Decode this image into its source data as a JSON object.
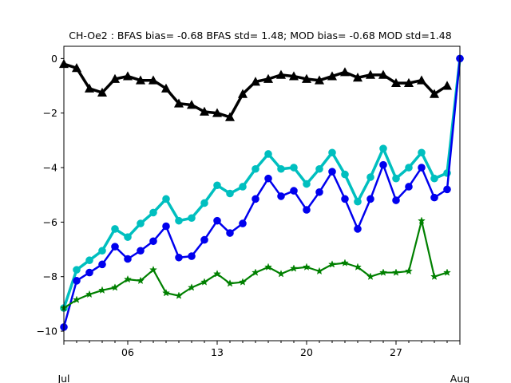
{
  "chart_data": {
    "type": "line",
    "title": "CH-Oe2   : BFAS bias= -0.68 BFAS std= 1.48; MOD bias= -0.68 MOD std=1.48",
    "xlabel": "",
    "ylabel": "",
    "xlim": [
      1,
      32
    ],
    "ylim": [
      -10.35,
      0.45
    ],
    "x_ticks": [
      {
        "x": 6,
        "label": "06"
      },
      {
        "x": 13,
        "label": "13"
      },
      {
        "x": 20,
        "label": "20"
      },
      {
        "x": 27,
        "label": "27"
      }
    ],
    "x_month_labels": [
      {
        "x": 1,
        "label": "Jul"
      },
      {
        "x": 32,
        "label": "Aug"
      }
    ],
    "y_ticks": [
      0,
      -2,
      -4,
      -6,
      -8,
      -10
    ],
    "y_tick_labels": [
      "0",
      "−2",
      "−4",
      "−6",
      "−8",
      "−10"
    ],
    "grid": false,
    "x": [
      1,
      2,
      3,
      4,
      5,
      6,
      7,
      8,
      9,
      10,
      11,
      12,
      13,
      14,
      15,
      16,
      17,
      18,
      19,
      20,
      21,
      22,
      23,
      24,
      25,
      26,
      27,
      28,
      29,
      30,
      31,
      32
    ],
    "series": [
      {
        "color": "#000000",
        "marker": "triangle",
        "linewidth": 3.5,
        "values": [
          -0.2,
          -0.35,
          -1.1,
          -1.25,
          -0.75,
          -0.65,
          -0.8,
          -0.8,
          -1.1,
          -1.65,
          -1.7,
          -1.95,
          -2.0,
          -2.15,
          -1.3,
          -0.85,
          -0.75,
          -0.6,
          -0.65,
          -0.75,
          -0.8,
          -0.65,
          -0.5,
          -0.7,
          -0.6,
          -0.6,
          -0.9,
          -0.9,
          -0.8,
          -1.3,
          -1.0,
          null
        ]
      },
      {
        "color": "#00bfbf",
        "marker": "circle",
        "linewidth": 3.5,
        "values": [
          -9.15,
          -7.75,
          -7.4,
          -7.05,
          -6.25,
          -6.55,
          -6.05,
          -5.65,
          -5.15,
          -5.95,
          -5.85,
          -5.3,
          -4.65,
          -4.95,
          -4.7,
          -4.05,
          -3.5,
          -4.05,
          -4.0,
          -4.6,
          -4.05,
          -3.45,
          -4.25,
          -5.25,
          -4.35,
          -3.3,
          -4.4,
          -4.0,
          -3.45,
          -4.4,
          -4.2,
          0.0
        ]
      },
      {
        "color": "#0000ee",
        "marker": "circle",
        "linewidth": 2.5,
        "values": [
          -9.85,
          -8.15,
          -7.85,
          -7.55,
          -6.9,
          -7.35,
          -7.05,
          -6.7,
          -6.15,
          -7.3,
          -7.25,
          -6.65,
          -5.95,
          -6.4,
          -6.05,
          -5.15,
          -4.4,
          -5.05,
          -4.85,
          -5.55,
          -4.9,
          -4.15,
          -5.15,
          -6.25,
          -5.15,
          -3.9,
          -5.2,
          -4.7,
          -4.0,
          -5.1,
          -4.8,
          0.0
        ]
      },
      {
        "color": "#008000",
        "marker": "star",
        "linewidth": 2.2,
        "values": [
          -9.15,
          -8.85,
          -8.65,
          -8.5,
          -8.4,
          -8.1,
          -8.15,
          -7.75,
          -8.6,
          -8.7,
          -8.4,
          -8.2,
          -7.9,
          -8.25,
          -8.2,
          -7.85,
          -7.65,
          -7.9,
          -7.7,
          -7.65,
          -7.8,
          -7.55,
          -7.5,
          -7.65,
          -8.0,
          -7.85,
          -7.85,
          -7.8,
          -5.95,
          -8.0,
          -7.85,
          null
        ]
      }
    ]
  }
}
